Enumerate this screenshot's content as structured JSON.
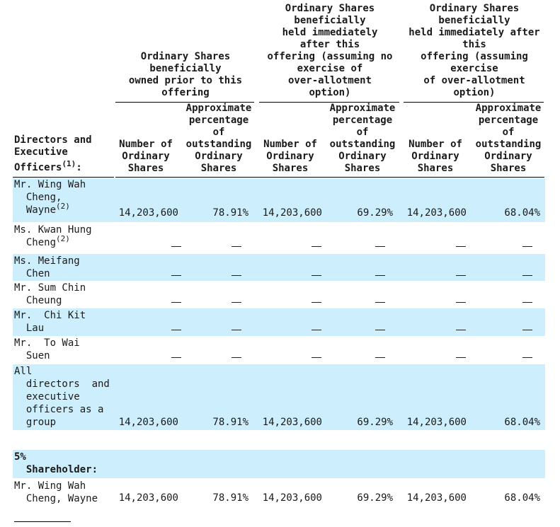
{
  "group_headers": [
    [
      "Ordinary Shares",
      "beneficially",
      "owned prior to this",
      "offering"
    ],
    [
      "Ordinary Shares",
      "beneficially",
      "held immediately",
      "after this",
      "offering (assuming no",
      "exercise of",
      "over-allotment",
      "option)"
    ],
    [
      "Ordinary Shares",
      "beneficially",
      "held immediately after",
      "this",
      "offering (assuming",
      "exercise",
      "of over-allotment",
      "option)"
    ]
  ],
  "first_col_header": [
    "Directors and",
    "Executive",
    "Officers",
    "(1)",
    ":"
  ],
  "sub_headers": [
    [
      "Number of",
      "Ordinary",
      "Shares"
    ],
    [
      "Approximate",
      "percentage",
      "of",
      "outstanding",
      "Ordinary",
      "Shares"
    ],
    [
      "Number of",
      "Ordinary",
      "Shares"
    ],
    [
      "Approximate",
      "percentage",
      "of",
      "outstanding",
      "Ordinary",
      "Shares"
    ],
    [
      "Number of",
      "Ordinary",
      "Shares"
    ],
    [
      "Approximate",
      "percentage",
      "of",
      "outstanding",
      "Ordinary",
      "Shares"
    ]
  ],
  "rows": [
    {
      "name_lines": [
        "Mr. Wing Wah",
        "  Cheng,",
        "  Wayne"
      ],
      "sup": "(2)",
      "values": [
        "14,203,600",
        "78.91%",
        "14,203,600",
        "69.29%",
        "14,203,600",
        "68.04%"
      ]
    },
    {
      "name_lines": [
        "Ms. Kwan Hung",
        "  Cheng"
      ],
      "sup": "(2)",
      "values": [
        "—",
        "—",
        "—",
        "—",
        "—",
        "—"
      ]
    },
    {
      "name_lines": [
        "Ms. Meifang",
        "  Chen"
      ],
      "sup": "",
      "values": [
        "—",
        "—",
        "—",
        "—",
        "—",
        "—"
      ]
    },
    {
      "name_lines": [
        "Mr. Sum Chin",
        "  Cheung"
      ],
      "sup": "",
      "values": [
        "—",
        "—",
        "—",
        "—",
        "—",
        "—"
      ]
    },
    {
      "name_lines": [
        "Mr.  Chi Kit",
        "  Lau"
      ],
      "sup": "",
      "values": [
        "—",
        "—",
        "—",
        "—",
        "—",
        "—"
      ]
    },
    {
      "name_lines": [
        "Mr.  To Wai",
        "  Suen"
      ],
      "sup": "",
      "values": [
        "—",
        "—",
        "—",
        "—",
        "—",
        "—"
      ]
    },
    {
      "name_lines": [
        "All",
        "  directors  and",
        "  executive",
        "  officers as a",
        "  group"
      ],
      "sup": "",
      "values": [
        "14,203,600",
        "78.91%",
        "14,203,600",
        "69.29%",
        "14,203,600",
        "68.04%"
      ]
    }
  ],
  "section_header": [
    "5%",
    "  Shareholder:"
  ],
  "shareholder_row": {
    "name_lines": [
      "Mr. Wing Wah",
      "  Cheng, Wayne"
    ],
    "values": [
      "14,203,600",
      "78.91%",
      "14,203,600",
      "69.29%",
      "14,203,600",
      "68.04%"
    ]
  },
  "colors": {
    "row_shade": "#cdeefc",
    "text": "#1a1a1a"
  }
}
